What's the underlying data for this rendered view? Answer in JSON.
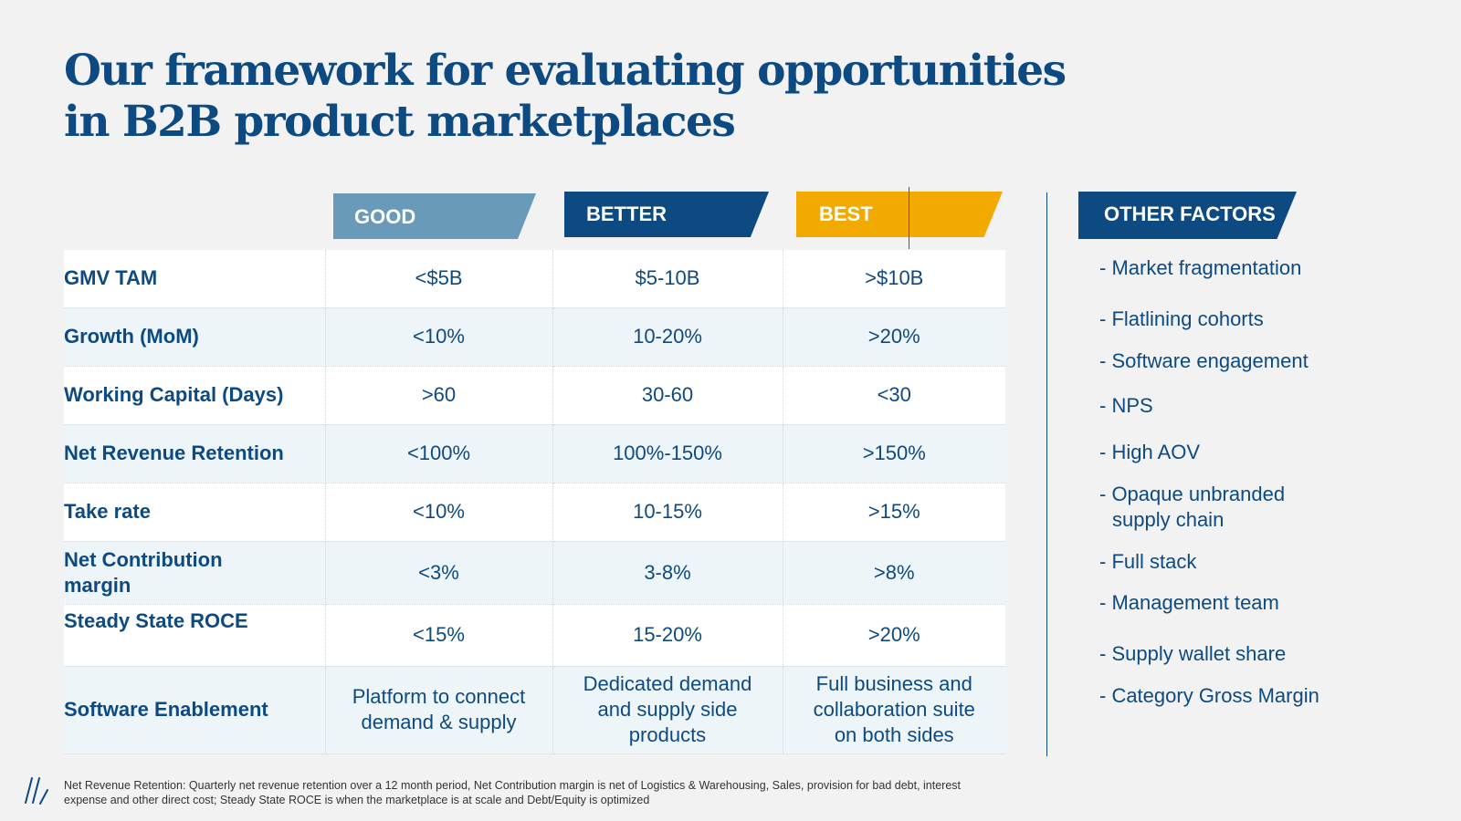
{
  "title": "Our framework for evaluating opportunities in B2B product marketplaces",
  "tiers": [
    {
      "label": "GOOD",
      "color": "#6a9aba"
    },
    {
      "label": "BETTER",
      "color": "#0d4a82"
    },
    {
      "label": "BEST",
      "color": "#f2a900"
    }
  ],
  "rows": [
    {
      "label": "GMV TAM",
      "values": [
        "<$5B",
        "$5-10B",
        ">$10B"
      ]
    },
    {
      "label": "Growth (MoM)",
      "values": [
        "<10%",
        "10-20%",
        ">20%"
      ]
    },
    {
      "label": "Working Capital (Days)",
      "values": [
        ">60",
        "30-60",
        "<30"
      ]
    },
    {
      "label": "Net Revenue Retention",
      "values": [
        "<100%",
        "100%-150%",
        ">150%"
      ]
    },
    {
      "label": "Take rate",
      "values": [
        "<10%",
        "10-15%",
        ">15%"
      ]
    },
    {
      "label": "Net Contribution margin",
      "values": [
        "<3%",
        "3-8%",
        ">8%"
      ]
    },
    {
      "label": "Steady State ROCE",
      "values": [
        "<15%",
        "15-20%",
        ">20%"
      ]
    },
    {
      "label": "Software Enablement",
      "values": [
        "Platform to connect demand & supply",
        "Dedicated demand and supply side products",
        "Full business and collaboration suite on both sides"
      ]
    }
  ],
  "other_factors": {
    "label": "OTHER FACTORS",
    "items": [
      "- Market fragmentation",
      "- Flatlining cohorts",
      "- Software engagement",
      "- NPS",
      "- High AOV",
      "- Opaque unbranded",
      "supply chain",
      "- Full stack",
      "- Management team",
      "- Supply wallet share",
      "- Category Gross Margin"
    ]
  },
  "footnote": "Net Revenue Retention: Quarterly net revenue retention over a 12 month period, Net Contribution margin is net of Logistics & Warehousing, Sales, provision for bad debt, interest expense and other direct cost; Steady State ROCE is when the marketplace is at scale and Debt/Equity is optimized"
}
